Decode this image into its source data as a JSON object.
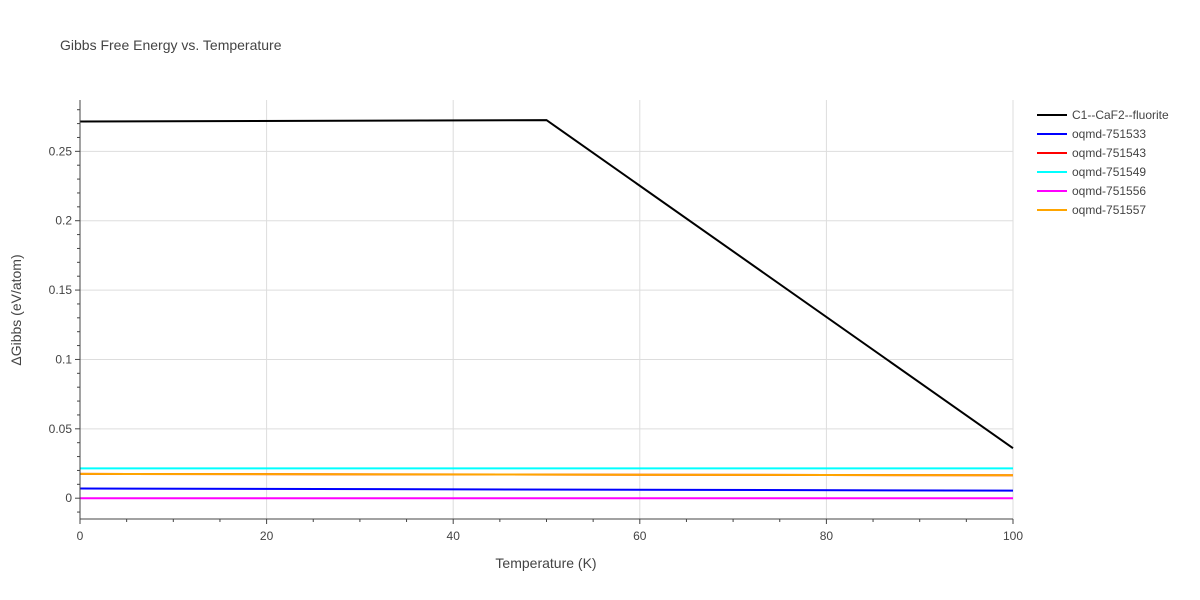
{
  "chart_data": {
    "type": "line",
    "title": "Gibbs Free Energy vs. Temperature",
    "xlabel": "Temperature (K)",
    "ylabel": "ΔGibbs (eV/atom)",
    "xlim": [
      0,
      100
    ],
    "ylim": [
      -0.015,
      0.287
    ],
    "x_ticks": [
      0,
      20,
      40,
      60,
      80,
      100
    ],
    "x_tick_labels": [
      "0",
      "20",
      "40",
      "60",
      "80",
      "100"
    ],
    "y_ticks": [
      0,
      0.05,
      0.1,
      0.15,
      0.2,
      0.25
    ],
    "y_tick_labels": [
      "0",
      "0.05",
      "0.1",
      "0.15",
      "0.2",
      "0.25"
    ],
    "grid": true,
    "legend_position": "top-right",
    "series": [
      {
        "name": "C1--CaF2--fluorite",
        "color": "#000000",
        "x": [
          0,
          50,
          100
        ],
        "y": [
          0.2715,
          0.2725,
          0.036
        ]
      },
      {
        "name": "oqmd-751533",
        "color": "#0000ff",
        "x": [
          0,
          100
        ],
        "y": [
          0.007,
          0.0055
        ]
      },
      {
        "name": "oqmd-751543",
        "color": "#ff0000",
        "x": [
          0,
          100
        ],
        "y": [
          0.0175,
          0.0165
        ]
      },
      {
        "name": "oqmd-751549",
        "color": "#00ffff",
        "x": [
          0,
          100
        ],
        "y": [
          0.0215,
          0.0215
        ]
      },
      {
        "name": "oqmd-751556",
        "color": "#ff00ff",
        "x": [
          0,
          100
        ],
        "y": [
          0.0,
          0.0
        ]
      },
      {
        "name": "oqmd-751557",
        "color": "#ffa500",
        "x": [
          0,
          100
        ],
        "y": [
          0.0175,
          0.0165
        ]
      }
    ]
  }
}
